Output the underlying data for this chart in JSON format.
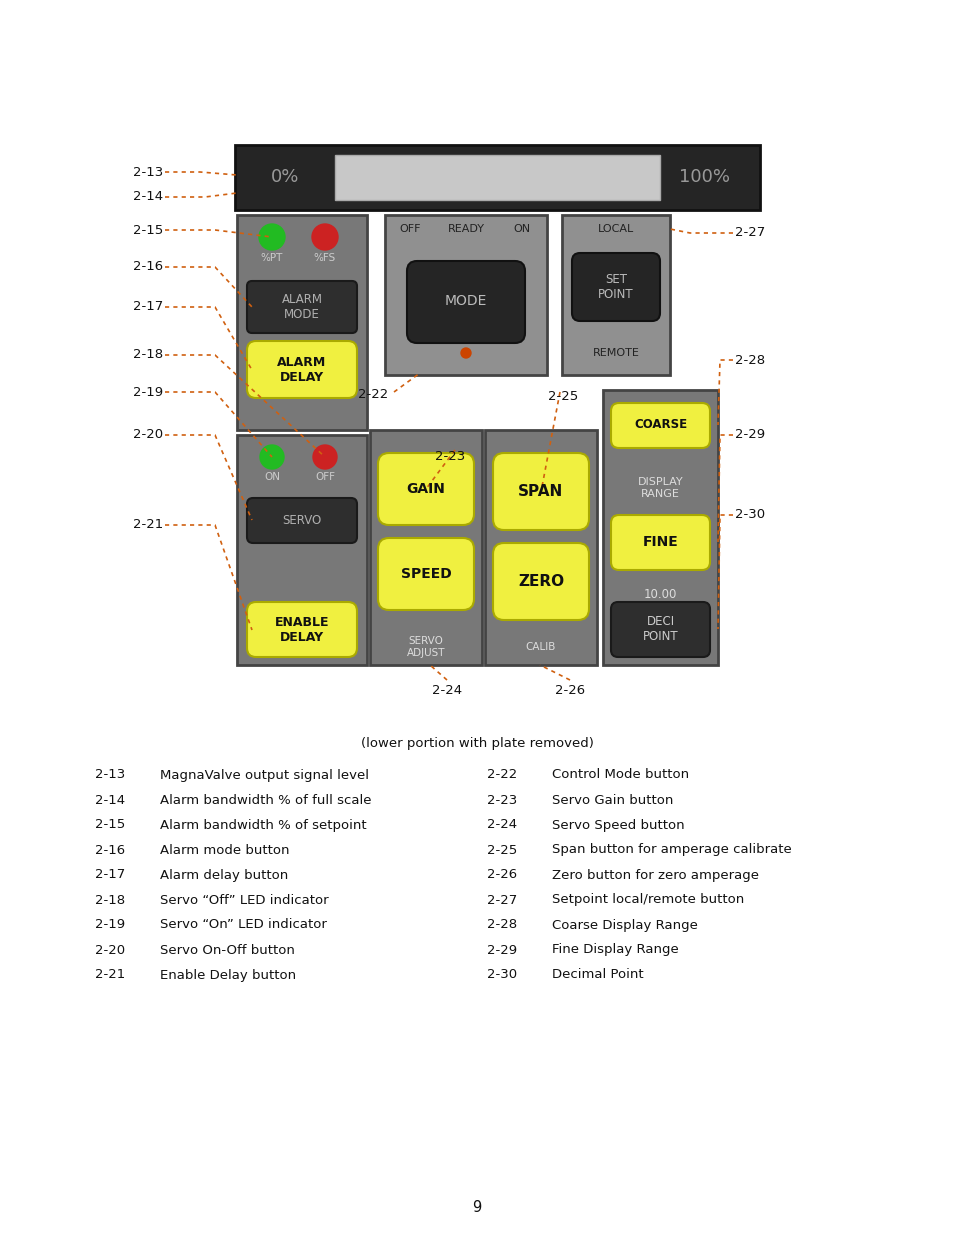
{
  "bg_color": "#ffffff",
  "button_yellow": "#f0f040",
  "led_green": "#22bb22",
  "led_red": "#cc2222",
  "arrow_color": "#d06010",
  "legend_items_left": [
    [
      "2-13",
      "MagnaValve output signal level"
    ],
    [
      "2-14",
      "Alarm bandwidth % of full scale"
    ],
    [
      "2-15",
      "Alarm bandwidth % of setpoint"
    ],
    [
      "2-16",
      "Alarm mode button"
    ],
    [
      "2-17",
      "Alarm delay button"
    ],
    [
      "2-18",
      "Servo “Off” LED indicator"
    ],
    [
      "2-19",
      "Servo “On” LED indicator"
    ],
    [
      "2-20",
      "Servo On-Off button"
    ],
    [
      "2-21",
      "Enable Delay button"
    ]
  ],
  "legend_items_right": [
    [
      "2-22",
      "Control Mode button"
    ],
    [
      "2-23",
      "Servo Gain button"
    ],
    [
      "2-24",
      "Servo Speed button"
    ],
    [
      "2-25",
      "Span button for amperage calibrate"
    ],
    [
      "2-26",
      "Zero button for zero amperage"
    ],
    [
      "2-27",
      "Setpoint local/remote button"
    ],
    [
      "2-28",
      "Coarse Display Range"
    ],
    [
      "2-29",
      "Fine Display Range"
    ],
    [
      "2-30",
      "Decimal Point"
    ]
  ],
  "caption": "(lower portion with plate removed)",
  "page_number": "9"
}
